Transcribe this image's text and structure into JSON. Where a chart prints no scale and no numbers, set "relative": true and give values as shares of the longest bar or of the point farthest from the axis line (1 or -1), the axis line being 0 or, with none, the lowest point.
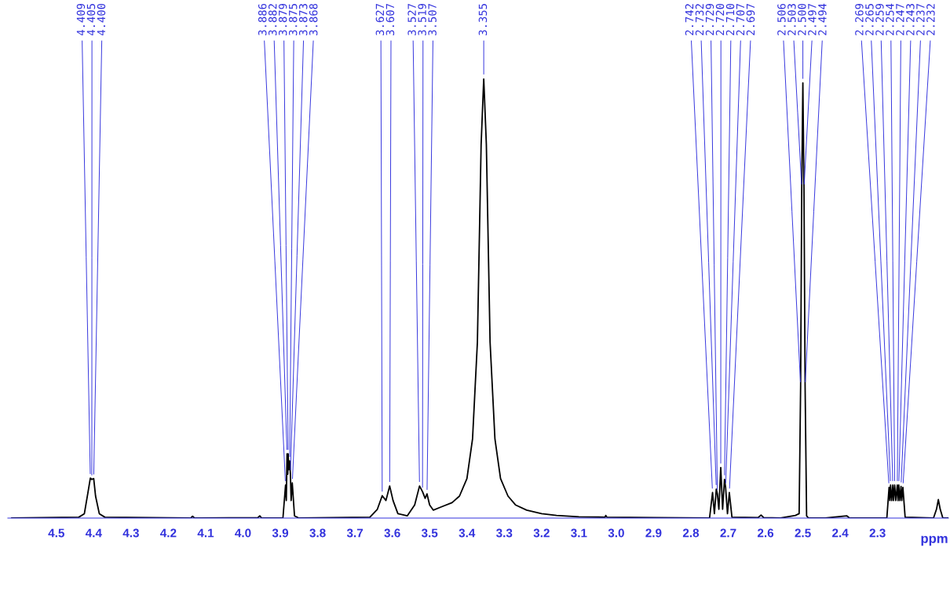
{
  "chart_data": {
    "type": "line",
    "relative": true,
    "xlabel": "ppm",
    "xlim": [
      4.63,
      2.11
    ],
    "xticks": [
      4.5,
      4.4,
      4.3,
      4.2,
      4.1,
      {
        "value": 4.0,
        "label": "4.0"
      },
      3.9,
      3.8,
      3.7,
      3.6,
      3.5,
      3.4,
      3.3,
      3.2,
      3.1,
      {
        "value": 3.0,
        "label": "3.0"
      },
      2.9,
      2.8,
      2.7,
      2.6,
      2.5,
      2.4,
      2.3
    ],
    "series": [
      {
        "color": "#000000",
        "x": [
          4.62,
          4.44,
          4.425,
          4.415,
          4.409,
          4.405,
          4.4,
          4.395,
          4.385,
          4.37,
          4.14,
          4.135,
          4.13,
          3.96,
          3.955,
          3.95,
          3.893,
          3.886,
          3.884,
          3.882,
          3.88,
          3.879,
          3.877,
          3.875,
          3.873,
          3.871,
          3.868,
          3.862,
          3.85,
          3.66,
          3.64,
          3.627,
          3.617,
          3.607,
          3.598,
          3.585,
          3.56,
          3.54,
          3.527,
          3.519,
          3.512,
          3.507,
          3.5,
          3.49,
          3.47,
          3.44,
          3.42,
          3.4,
          3.385,
          3.372,
          3.362,
          3.355,
          3.348,
          3.338,
          3.325,
          3.31,
          3.29,
          3.27,
          3.24,
          3.2,
          3.16,
          3.1,
          3.03,
          3.028,
          3.025,
          2.9,
          2.75,
          2.742,
          2.737,
          2.732,
          2.729,
          2.725,
          2.72,
          2.715,
          2.71,
          2.707,
          2.702,
          2.697,
          2.69,
          2.62,
          2.612,
          2.605,
          2.56,
          2.52,
          2.51,
          2.506,
          2.503,
          2.5,
          2.497,
          2.494,
          2.49,
          2.485,
          2.47,
          2.44,
          2.382,
          2.375,
          2.275,
          2.269,
          2.267,
          2.265,
          2.262,
          2.259,
          2.257,
          2.254,
          2.251,
          2.247,
          2.245,
          2.243,
          2.24,
          2.237,
          2.235,
          2.232,
          2.226,
          2.15,
          2.142,
          2.137,
          2.132,
          2.125,
          2.11
        ],
        "values": [
          0,
          0.002,
          0.01,
          0.06,
          0.091,
          0.088,
          0.09,
          0.05,
          0.01,
          0.002,
          0,
          0.004,
          0,
          0.001,
          0.005,
          0,
          0,
          0.075,
          0.04,
          0.146,
          0.1,
          0.146,
          0.11,
          0.13,
          0.1,
          0.04,
          0.08,
          0.005,
          0,
          0.002,
          0.02,
          0.051,
          0.04,
          0.073,
          0.04,
          0.01,
          0.005,
          0.03,
          0.073,
          0.06,
          0.045,
          0.055,
          0.03,
          0.018,
          0.025,
          0.035,
          0.05,
          0.09,
          0.18,
          0.4,
          0.85,
          1,
          0.85,
          0.4,
          0.18,
          0.09,
          0.05,
          0.03,
          0.018,
          0.01,
          0.006,
          0.003,
          0.002,
          0.006,
          0.002,
          0.001,
          0,
          0.058,
          0.01,
          0.066,
          0.055,
          0.02,
          0.115,
          0.02,
          0.088,
          0.07,
          0.01,
          0.058,
          0.002,
          0.001,
          0.007,
          0.001,
          0,
          0.006,
          0.01,
          0.3,
          0.75,
          0.99,
          0.75,
          0.3,
          0.005,
          0,
          0,
          0,
          0.005,
          0,
          0,
          0.07,
          0.04,
          0.075,
          0.04,
          0.075,
          0.04,
          0.075,
          0.04,
          0.075,
          0.04,
          0.075,
          0.04,
          0.072,
          0.04,
          0.07,
          0.002,
          0,
          0.02,
          0.042,
          0.02,
          0,
          0
        ]
      }
    ],
    "annotations": [
      {
        "text": "4.409",
        "x": 4.409,
        "y": 0.091
      },
      {
        "text": "4.405",
        "x": 4.405,
        "y": 0.088
      },
      {
        "text": "4.400",
        "x": 4.4,
        "y": 0.09
      },
      {
        "text": "3.886",
        "x": 3.886,
        "y": 0.075
      },
      {
        "text": "3.882",
        "x": 3.882,
        "y": 0.146
      },
      {
        "text": "3.879",
        "x": 3.879,
        "y": 0.146
      },
      {
        "text": "3.875",
        "x": 3.875,
        "y": 0.13
      },
      {
        "text": "3.873",
        "x": 3.873,
        "y": 0.1
      },
      {
        "text": "3.868",
        "x": 3.868,
        "y": 0.08
      },
      {
        "text": "3.627",
        "x": 3.627,
        "y": 0.051
      },
      {
        "text": "3.607",
        "x": 3.607,
        "y": 0.073
      },
      {
        "text": "3.527",
        "x": 3.527,
        "y": 0.073
      },
      {
        "text": "3.519",
        "x": 3.519,
        "y": 0.06
      },
      {
        "text": "3.507",
        "x": 3.507,
        "y": 0.055
      },
      {
        "text": "3.355",
        "x": 3.355,
        "y": 1
      },
      {
        "text": "2.742",
        "x": 2.742,
        "y": 0.058
      },
      {
        "text": "2.732",
        "x": 2.732,
        "y": 0.066
      },
      {
        "text": "2.729",
        "x": 2.729,
        "y": 0.055
      },
      {
        "text": "2.720",
        "x": 2.72,
        "y": 0.115
      },
      {
        "text": "2.710",
        "x": 2.71,
        "y": 0.088
      },
      {
        "text": "2.707",
        "x": 2.707,
        "y": 0.07
      },
      {
        "text": "2.697",
        "x": 2.697,
        "y": 0.058
      },
      {
        "text": "2.506",
        "x": 2.506,
        "y": 0.3
      },
      {
        "text": "2.503",
        "x": 2.503,
        "y": 0.75
      },
      {
        "text": "2.500",
        "x": 2.5,
        "y": 0.99
      },
      {
        "text": "2.497",
        "x": 2.497,
        "y": 0.75
      },
      {
        "text": "2.494",
        "x": 2.494,
        "y": 0.3
      },
      {
        "text": "2.269",
        "x": 2.269,
        "y": 0.07
      },
      {
        "text": "2.265",
        "x": 2.265,
        "y": 0.075
      },
      {
        "text": "2.259",
        "x": 2.259,
        "y": 0.075
      },
      {
        "text": "2.254",
        "x": 2.254,
        "y": 0.075
      },
      {
        "text": "2.247",
        "x": 2.247,
        "y": 0.075
      },
      {
        "text": "2.243",
        "x": 2.243,
        "y": 0.075
      },
      {
        "text": "2.237",
        "x": 2.237,
        "y": 0.072
      },
      {
        "text": "2.232",
        "x": 2.232,
        "y": 0.07
      }
    ]
  }
}
